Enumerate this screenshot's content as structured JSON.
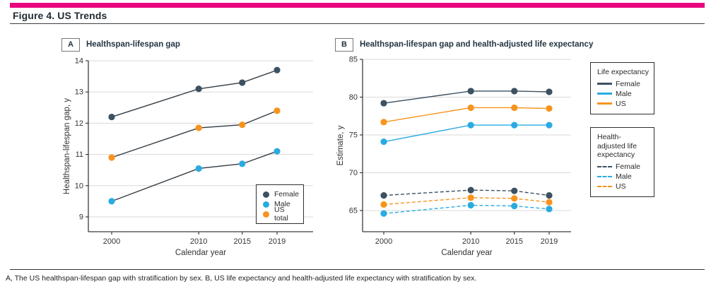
{
  "page": {
    "figure_title": "Figure 4. US Trends",
    "caption": "A, The US healthspan-lifespan gap with stratification by sex. B, US life expectancy and health-adjusted life expectancy with stratification by sex.",
    "accent_color": "#e8067e"
  },
  "colors": {
    "female": "#3c5161",
    "male": "#29abe2",
    "us": "#f7941e",
    "line_dark": "#343b41",
    "grid": "#d9d9d9",
    "axis": "#3c3c3c",
    "text": "#333333"
  },
  "chart_data": [
    {
      "panel_label": "A",
      "title": "Healthspan-lifespan gap",
      "type": "line",
      "x": [
        2000,
        2010,
        2015,
        2019
      ],
      "x_tick_labels": [
        "2000",
        "2010",
        "2015",
        "2019"
      ],
      "xlabel": "Calendar year",
      "ylabel": "Healthspan-lifespan gap, y",
      "ylim": [
        8.5,
        14
      ],
      "yticks": [
        9,
        10,
        11,
        12,
        13,
        14
      ],
      "grid": true,
      "marker_lines": "dark",
      "series": [
        {
          "name": "Female",
          "color_key": "female",
          "dashed": false,
          "values": [
            12.2,
            13.1,
            13.3,
            13.7
          ]
        },
        {
          "name": "Male",
          "color_key": "male",
          "dashed": false,
          "values": [
            9.5,
            10.55,
            10.7,
            11.1
          ]
        },
        {
          "name": "US total",
          "color_key": "us",
          "dashed": false,
          "values": [
            10.9,
            11.85,
            11.95,
            12.4
          ]
        }
      ],
      "legend": {
        "position": "bottom-right",
        "items": [
          {
            "label": "Female",
            "color_key": "female"
          },
          {
            "label": "Male",
            "color_key": "male"
          },
          {
            "label": "US total",
            "color_key": "us"
          }
        ]
      }
    },
    {
      "panel_label": "B",
      "title": "Healthspan-lifespan gap and health-adjusted life expectancy",
      "type": "line",
      "x": [
        2000,
        2010,
        2015,
        2019
      ],
      "x_tick_labels": [
        "2000",
        "2010",
        "2015",
        "2019"
      ],
      "xlabel": "Calendar year",
      "ylabel": "Estimate, y",
      "ylim": [
        62,
        85
      ],
      "yticks": [
        65,
        70,
        75,
        80,
        85
      ],
      "grid": true,
      "marker_lines": "series",
      "series": [
        {
          "name": "Female",
          "group": "Life expectancy",
          "color_key": "female",
          "dashed": false,
          "values": [
            79.2,
            80.8,
            80.8,
            80.7
          ]
        },
        {
          "name": "Male",
          "group": "Life expectancy",
          "color_key": "male",
          "dashed": false,
          "values": [
            74.1,
            76.3,
            76.3,
            76.3
          ]
        },
        {
          "name": "US",
          "group": "Life expectancy",
          "color_key": "us",
          "dashed": false,
          "values": [
            76.7,
            78.6,
            78.6,
            78.5
          ]
        },
        {
          "name": "Female",
          "group": "Health-adjusted life expectancy",
          "color_key": "female",
          "dashed": true,
          "values": [
            67.0,
            67.7,
            67.6,
            67.0
          ]
        },
        {
          "name": "Male",
          "group": "Health-adjusted life expectancy",
          "color_key": "male",
          "dashed": true,
          "values": [
            64.6,
            65.7,
            65.6,
            65.2
          ]
        },
        {
          "name": "US",
          "group": "Health-adjusted life expectancy",
          "color_key": "us",
          "dashed": true,
          "values": [
            65.8,
            66.7,
            66.6,
            66.1
          ]
        }
      ],
      "legends": [
        {
          "title": "Life expectancy",
          "dashed": false,
          "items": [
            {
              "label": "Female",
              "color_key": "female"
            },
            {
              "label": "Male",
              "color_key": "male"
            },
            {
              "label": "US",
              "color_key": "us"
            }
          ]
        },
        {
          "title": "Health-adjusted life expectancy",
          "dashed": true,
          "items": [
            {
              "label": "Female",
              "color_key": "female"
            },
            {
              "label": "Male",
              "color_key": "male"
            },
            {
              "label": "US",
              "color_key": "us"
            }
          ]
        }
      ]
    }
  ]
}
